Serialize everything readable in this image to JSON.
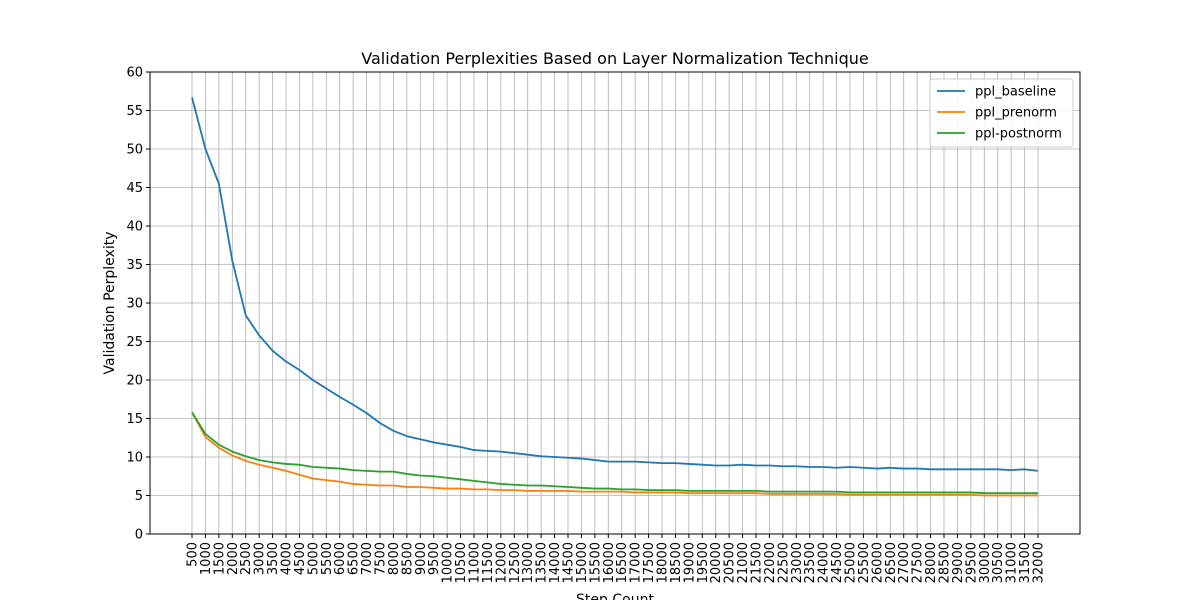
{
  "chart_data": {
    "type": "line",
    "title": "Validation Perplexities Based on Layer Normalization Technique",
    "xlabel": "Step Count",
    "ylabel": "Validation Perplexity",
    "ylim": [
      0,
      60
    ],
    "yticks": [
      0,
      5,
      10,
      15,
      20,
      25,
      30,
      35,
      40,
      45,
      50,
      55,
      60
    ],
    "grid": true,
    "legend_position": "top-right",
    "categories": [
      500,
      1000,
      1500,
      2000,
      2500,
      3000,
      3500,
      4000,
      4500,
      5000,
      5500,
      6000,
      6500,
      7000,
      7500,
      8000,
      8500,
      9000,
      9500,
      10000,
      10500,
      11000,
      11500,
      12000,
      12500,
      13000,
      13500,
      14000,
      14500,
      15000,
      15500,
      16000,
      16500,
      17000,
      17500,
      18000,
      18500,
      19000,
      19500,
      20000,
      20500,
      21000,
      21500,
      22000,
      22500,
      23000,
      23500,
      24000,
      24500,
      25000,
      25500,
      26000,
      26500,
      27000,
      27500,
      28000,
      28500,
      29000,
      29500,
      30000,
      30500,
      31000,
      31500,
      32000
    ],
    "series": [
      {
        "name": "ppl_baseline",
        "color": "#1f77b4",
        "values": [
          56.7,
          50.0,
          45.5,
          35.5,
          28.4,
          25.8,
          23.8,
          22.4,
          21.3,
          20.0,
          18.9,
          17.8,
          16.8,
          15.7,
          14.4,
          13.4,
          12.7,
          12.3,
          11.9,
          11.6,
          11.3,
          10.9,
          10.8,
          10.7,
          10.5,
          10.3,
          10.1,
          10.0,
          9.9,
          9.8,
          9.6,
          9.4,
          9.4,
          9.4,
          9.3,
          9.2,
          9.2,
          9.1,
          9.0,
          8.9,
          8.9,
          9.0,
          8.9,
          8.9,
          8.8,
          8.8,
          8.7,
          8.7,
          8.6,
          8.7,
          8.6,
          8.5,
          8.6,
          8.5,
          8.5,
          8.4,
          8.4,
          8.4,
          8.4,
          8.4,
          8.4,
          8.3,
          8.4,
          8.2
        ]
      },
      {
        "name": "ppl_prenorm",
        "color": "#ff7f0e",
        "values": [
          15.8,
          12.6,
          11.2,
          10.2,
          9.5,
          9.0,
          8.6,
          8.2,
          7.7,
          7.2,
          7.0,
          6.8,
          6.5,
          6.4,
          6.3,
          6.3,
          6.1,
          6.1,
          6.0,
          5.9,
          5.9,
          5.8,
          5.8,
          5.7,
          5.7,
          5.6,
          5.6,
          5.6,
          5.6,
          5.5,
          5.5,
          5.5,
          5.5,
          5.4,
          5.4,
          5.4,
          5.4,
          5.3,
          5.3,
          5.3,
          5.3,
          5.3,
          5.3,
          5.2,
          5.2,
          5.2,
          5.2,
          5.2,
          5.2,
          5.1,
          5.1,
          5.1,
          5.1,
          5.1,
          5.1,
          5.1,
          5.1,
          5.1,
          5.1,
          5.0,
          5.0,
          5.0,
          5.0,
          5.0
        ]
      },
      {
        "name": "ppl-postnorm",
        "color": "#2ca02c",
        "values": [
          15.8,
          13.0,
          11.6,
          10.7,
          10.1,
          9.6,
          9.3,
          9.1,
          9.0,
          8.7,
          8.6,
          8.5,
          8.3,
          8.2,
          8.1,
          8.1,
          7.8,
          7.6,
          7.5,
          7.3,
          7.1,
          6.9,
          6.7,
          6.5,
          6.4,
          6.3,
          6.3,
          6.2,
          6.1,
          6.0,
          5.9,
          5.9,
          5.8,
          5.8,
          5.7,
          5.7,
          5.7,
          5.6,
          5.6,
          5.6,
          5.6,
          5.6,
          5.6,
          5.5,
          5.5,
          5.5,
          5.5,
          5.5,
          5.5,
          5.4,
          5.4,
          5.4,
          5.4,
          5.4,
          5.4,
          5.4,
          5.4,
          5.4,
          5.4,
          5.3,
          5.3,
          5.3,
          5.3,
          5.3
        ]
      }
    ]
  }
}
